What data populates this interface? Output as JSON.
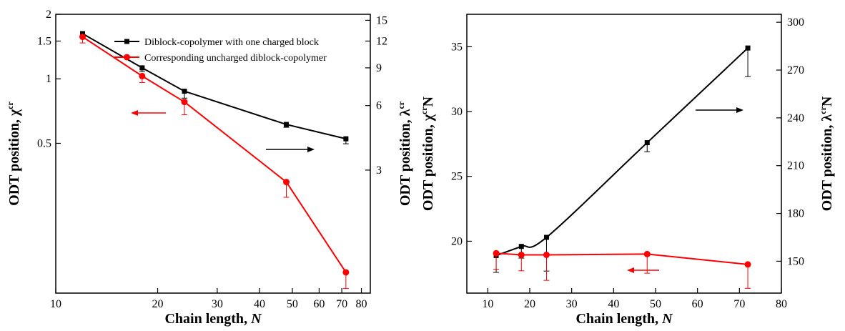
{
  "colors": {
    "black": "#000000",
    "red": "#ff0000"
  },
  "chart_data": [
    {
      "type": "line",
      "panel": "left",
      "xlabel_text": "Chain length, ",
      "xlabel_sym": "N",
      "ylabel_left_text": "ODT position, χ",
      "ylabel_left_sup": "cr",
      "ylabel_right_text": "ODT position, λ",
      "ylabel_right_sup": "cr",
      "x_scale": "log",
      "y_left_scale": "log",
      "y_right_scale": "log",
      "xlim": [
        10,
        85
      ],
      "ylim_left": [
        0.1,
        2
      ],
      "ylim_right": [
        0.8,
        16
      ],
      "x_ticks": [
        10,
        20,
        30,
        40,
        50,
        60,
        70,
        80
      ],
      "x_tick_labels": [
        "10",
        "20",
        "30",
        "40",
        "50",
        "60",
        "70",
        "80"
      ],
      "y_left_ticks": [
        0.5,
        1,
        1.5,
        2
      ],
      "y_left_tick_labels": [
        "0.5",
        "1",
        "1.5",
        "2"
      ],
      "y_right_ticks": [
        3,
        6,
        9,
        12,
        15
      ],
      "y_right_tick_labels": [
        "3",
        "6",
        "9",
        "12",
        "15"
      ],
      "legend": [
        "Diblock-copolymer with one charged block",
        "Corresponding uncharged diblock-copolymer"
      ],
      "legend_position": "top-right",
      "series": [
        {
          "name": "Diblock-copolymer with one charged block",
          "axis": "right",
          "color": "#000000",
          "marker": "square",
          "x": [
            12,
            18,
            24,
            48,
            72
          ],
          "values": [
            13.0,
            9.0,
            7.0,
            4.9,
            4.2
          ],
          "err_low": [
            0,
            0.35,
            0.5,
            0.15,
            0.22
          ],
          "err_high": [
            0,
            0,
            0,
            0,
            0
          ]
        },
        {
          "name": "Corresponding uncharged diblock-copolymer",
          "axis": "left",
          "color": "#ff0000",
          "marker": "circle",
          "x": [
            12,
            18,
            24,
            48,
            72
          ],
          "values": [
            1.57,
            1.03,
            0.78,
            0.33,
            0.125
          ],
          "err_low": [
            0.1,
            0.07,
            0.1,
            0.05,
            0.02
          ],
          "err_high": [
            0,
            0,
            0,
            0,
            0
          ]
        }
      ],
      "arrows": [
        {
          "color": "#ff0000",
          "direction": "left"
        },
        {
          "color": "#000000",
          "direction": "right"
        }
      ]
    },
    {
      "type": "line",
      "panel": "right",
      "xlabel_text": "Chain length, ",
      "xlabel_sym": "N",
      "ylabel_left_text": "ODT position, χ",
      "ylabel_left_sup": "cr",
      "ylabel_left_suffix": "N",
      "ylabel_right_text": "ODT position, λ",
      "ylabel_right_sup": "cr",
      "ylabel_right_suffix": "N",
      "x_scale": "linear",
      "y_left_scale": "linear",
      "y_right_scale": "linear",
      "xlim": [
        5,
        80
      ],
      "ylim_left": [
        16,
        37.5
      ],
      "ylim_right": [
        130,
        305
      ],
      "x_ticks": [
        10,
        20,
        30,
        40,
        50,
        60,
        70,
        80
      ],
      "x_tick_labels": [
        "10",
        "20",
        "30",
        "40",
        "50",
        "60",
        "70",
        "80"
      ],
      "y_left_ticks": [
        20,
        25,
        30,
        35
      ],
      "y_left_tick_labels": [
        "20",
        "25",
        "30",
        "35"
      ],
      "y_right_ticks": [
        150,
        180,
        210,
        240,
        270,
        300
      ],
      "y_right_tick_labels": [
        "150",
        "180",
        "210",
        "240",
        "270",
        "300"
      ],
      "series": [
        {
          "name": "Diblock-copolymer with one charged block",
          "axis": "left",
          "color": "#000000",
          "marker": "square",
          "smooth": true,
          "x": [
            12,
            18,
            24,
            48,
            72
          ],
          "values": [
            18.9,
            19.6,
            20.3,
            27.6,
            34.9
          ],
          "err_low": [
            1.3,
            0.9,
            2.6,
            0.7,
            2.2
          ],
          "err_high": [
            0,
            0,
            0,
            0,
            0
          ]
        },
        {
          "name": "Corresponding uncharged diblock-copolymer",
          "axis": "right",
          "color": "#ff0000",
          "marker": "circle",
          "x": [
            12,
            18,
            24,
            48,
            72
          ],
          "values": [
            155,
            154,
            154,
            154.5,
            148
          ],
          "err_low": [
            10,
            10,
            16,
            12,
            15
          ],
          "err_high": [
            0,
            0,
            0,
            0,
            0
          ]
        }
      ],
      "arrows": [
        {
          "color": "#000000",
          "direction": "right"
        },
        {
          "color": "#ff0000",
          "direction": "left"
        }
      ]
    }
  ]
}
